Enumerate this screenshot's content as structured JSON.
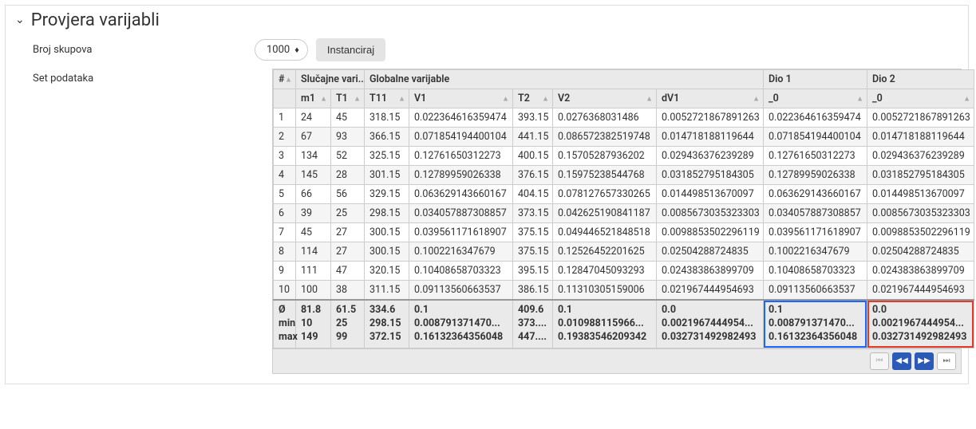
{
  "panel": {
    "title": "Provjera varijabli",
    "field_count_label": "Broj skupova",
    "field_data_label": "Set podataka",
    "count_value": "1000",
    "instantiate_label": "Instanciraj"
  },
  "table": {
    "group_headers": {
      "index": "#",
      "random": "Slučajne vari...",
      "global": "Globalne varijable",
      "part1": "Dio 1",
      "part2": "Dio 2"
    },
    "columns": [
      "m1",
      "T1",
      "T11",
      "V1",
      "T2",
      "V2",
      "dV1",
      "_0",
      "_0"
    ],
    "rows": [
      {
        "i": "1",
        "m1": "24",
        "T1": "45",
        "T11": "318.15",
        "V1": "0.022364616359474",
        "T2": "393.15",
        "V2": "0.0276368031486",
        "dV1": "0.0052721867891263",
        "d1": "0.022364616359474",
        "d2": "0.0052721867891263"
      },
      {
        "i": "2",
        "m1": "67",
        "T1": "93",
        "T11": "366.15",
        "V1": "0.071854194400104",
        "T2": "441.15",
        "V2": "0.086572382519748",
        "dV1": "0.014718188119644",
        "d1": "0.071854194400104",
        "d2": "0.014718188119644"
      },
      {
        "i": "3",
        "m1": "134",
        "T1": "52",
        "T11": "325.15",
        "V1": "0.12761650312273",
        "T2": "400.15",
        "V2": "0.15705287936202",
        "dV1": "0.029436376239289",
        "d1": "0.12761650312273",
        "d2": "0.029436376239289"
      },
      {
        "i": "4",
        "m1": "145",
        "T1": "28",
        "T11": "301.15",
        "V1": "0.12789959026338",
        "T2": "376.15",
        "V2": "0.15975238544768",
        "dV1": "0.031852795184305",
        "d1": "0.12789959026338",
        "d2": "0.031852795184305"
      },
      {
        "i": "5",
        "m1": "66",
        "T1": "56",
        "T11": "329.15",
        "V1": "0.063629143660167",
        "T2": "404.15",
        "V2": "0.078127657330265",
        "dV1": "0.014498513670097",
        "d1": "0.063629143660167",
        "d2": "0.014498513670097"
      },
      {
        "i": "6",
        "m1": "39",
        "T1": "25",
        "T11": "298.15",
        "V1": "0.034057887308857",
        "T2": "373.15",
        "V2": "0.042625190841187",
        "dV1": "0.0085673035323303",
        "d1": "0.034057887308857",
        "d2": "0.0085673035323303"
      },
      {
        "i": "7",
        "m1": "45",
        "T1": "27",
        "T11": "300.15",
        "V1": "0.039561171618907",
        "T2": "375.15",
        "V2": "0.049446521848518",
        "dV1": "0.0098853502296119",
        "d1": "0.039561171618907",
        "d2": "0.0098853502296119"
      },
      {
        "i": "8",
        "m1": "114",
        "T1": "27",
        "T11": "300.15",
        "V1": "0.1002216347679",
        "T2": "375.15",
        "V2": "0.12526452201625",
        "dV1": "0.02504288724835",
        "d1": "0.1002216347679",
        "d2": "0.02504288724835"
      },
      {
        "i": "9",
        "m1": "111",
        "T1": "47",
        "T11": "320.15",
        "V1": "0.10408658703323",
        "T2": "395.15",
        "V2": "0.12847045093293",
        "dV1": "0.024383863899709",
        "d1": "0.10408658703323",
        "d2": "0.024383863899709"
      },
      {
        "i": "10",
        "m1": "100",
        "T1": "38",
        "T11": "311.15",
        "V1": "0.09113560663537",
        "T2": "386.15",
        "V2": "0.11310305159006",
        "dV1": "0.021967444954693",
        "d1": "0.09113560663537",
        "d2": "0.021967444954693"
      }
    ],
    "stats": {
      "labels": {
        "avg": "Ø",
        "min": "min",
        "max": "max"
      },
      "m1": {
        "avg": "81.8",
        "min": "10",
        "max": "149"
      },
      "T1": {
        "avg": "61.5",
        "min": "25",
        "max": "99"
      },
      "T11": {
        "avg": "334.6",
        "min": "298.15",
        "max": "372.15"
      },
      "V1": {
        "avg": "0.1",
        "min": "0.008791371470...",
        "max": "0.16132364356048"
      },
      "T2": {
        "avg": "409.6",
        "min": "373....",
        "max": "447...."
      },
      "V2": {
        "avg": "0.1",
        "min": "0.010988115966...",
        "max": "0.19383546209342"
      },
      "dV1": {
        "avg": "0.0",
        "min": "0.0021967444954...",
        "max": "0.032731492982493"
      },
      "d1": {
        "avg": "0.1",
        "min": "0.008791371470...",
        "max": "0.16132364356048"
      },
      "d2": {
        "avg": "0.0",
        "min": "0.0021967444954...",
        "max": "0.032731492982493"
      }
    },
    "highlight": {
      "d1": "blue",
      "d2": "red"
    },
    "colors": {
      "blue": "#1a66ff",
      "red": "#e23b2a"
    }
  }
}
